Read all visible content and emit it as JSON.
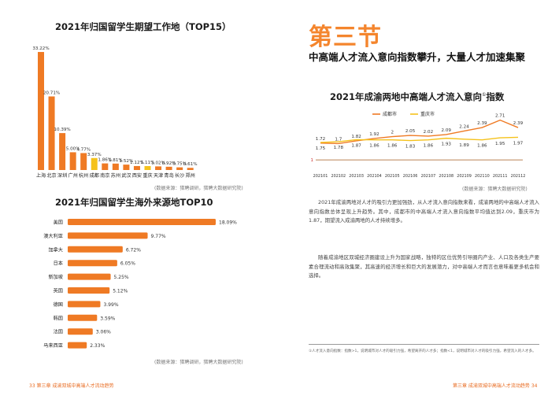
{
  "left": {
    "chart1": {
      "title": "2021年归国留学生期望工作地（TOP15）",
      "source": "(数据来源：猎聘调研，猎聘大数据研究院)"
    },
    "chart2": {
      "title": "2021年归国留学生海外来源地TOP10",
      "source": "(数据来源：猎聘调研，猎聘大数据研究院)"
    },
    "footer": "33  第三章  成渝双城中高端人才流动趋势"
  },
  "right": {
    "section_heading": "第三节",
    "subheading": "中高端人才流入意向指数攀升，大量人才加速集聚",
    "chart3": {
      "title": "2021年成渝两地中高端人才流入意向",
      "title_sup": "①",
      "title_tail": "指数",
      "source": "(数据来源：猎聘大数据研究院)"
    },
    "para1": "2021年成渝两地对人才的吸引力更加强劲，从人才流入意向指数来看，成渝两地的中高端人才流入意向指数总体呈现上升趋势。其中，成都市的中高端人才流入意向指数平均值达到2.09，重庆市为1.87，期望流入成渝两地的人才持续增多。",
    "para2": "随着成渝地区双城经济圈建设上升为国家战略，独特的区位优势引导圈内产业、人口及各类生产要素合理流动和高效集聚，其高速的经济增长和巨大的发展潜力，对中高端人才而言也意味着更多机会和选择。",
    "footnote": "①人才流入意向指数：指数>1，说明城市对人才的吸引力强，希望离开的人才多；指数<1，说明城市对人才的吸引力强，希望流入的人才多。",
    "footer": "第三章  成渝双城中高端人才流动趋势  34"
  },
  "colors": {
    "orange": "#ef7a24",
    "yellow": "#f5c21b",
    "brown": "#a35a1c"
  },
  "chart_data": [
    {
      "type": "bar",
      "title": "2021年归国留学生期望工作地（TOP15）",
      "categories": [
        "上海",
        "北京",
        "深圳",
        "广州",
        "杭州",
        "成都",
        "南京",
        "苏州",
        "武汉",
        "西安",
        "重庆",
        "天津",
        "青岛",
        "长沙",
        "郑州"
      ],
      "values": [
        33.22,
        20.71,
        10.39,
        5.0,
        4.77,
        3.37,
        1.86,
        1.81,
        1.52,
        1.12,
        1.11,
        1.02,
        0.92,
        0.75,
        0.61
      ],
      "labels": [
        "33.22%",
        "20.71%",
        "10.39%",
        "5.00%",
        "4.77%",
        "3.37%",
        "1.86%",
        "1.81%",
        "1.52%",
        "1.12%",
        "1.11%",
        "1.02%",
        "0.92%",
        "0.75%",
        "0.61%"
      ],
      "highlight": [
        "成都",
        "重庆"
      ],
      "ylim": [
        0,
        35
      ]
    },
    {
      "type": "bar",
      "orientation": "horizontal",
      "title": "2021年归国留学生海外来源地TOP10",
      "categories": [
        "美国",
        "澳大利亚",
        "加拿大",
        "日本",
        "新加坡",
        "英国",
        "德国",
        "韩国",
        "法国",
        "马来西亚"
      ],
      "values": [
        18.09,
        9.77,
        6.72,
        6.05,
        5.25,
        5.12,
        3.99,
        3.59,
        3.06,
        2.33
      ],
      "labels": [
        "18.09%",
        "9.77%",
        "6.72%",
        "6.05%",
        "5.25%",
        "5.12%",
        "3.99%",
        "3.59%",
        "3.06%",
        "2.33%"
      ],
      "xlim": [
        0,
        18.09
      ]
    },
    {
      "type": "line",
      "title": "2021年成渝两地中高端人才流入意向指数",
      "x": [
        "202101",
        "202102",
        "202103",
        "202104",
        "202105",
        "202106",
        "202107",
        "202108",
        "202109",
        "202110",
        "202111",
        "202112"
      ],
      "series": [
        {
          "name": "成都市",
          "values": [
            1.72,
            1.7,
            1.82,
            1.92,
            2,
            2.05,
            2.02,
            2.09,
            2.24,
            2.39,
            2.71,
            2.39
          ]
        },
        {
          "name": "重庆市",
          "values": [
            1.75,
            1.78,
            1.87,
            1.86,
            1.86,
            1.83,
            1.86,
            1.93,
            1.89,
            1.86,
            1.95,
            1.97
          ]
        }
      ],
      "reference_line": 1,
      "ylim": [
        0.8,
        2.9
      ]
    }
  ]
}
